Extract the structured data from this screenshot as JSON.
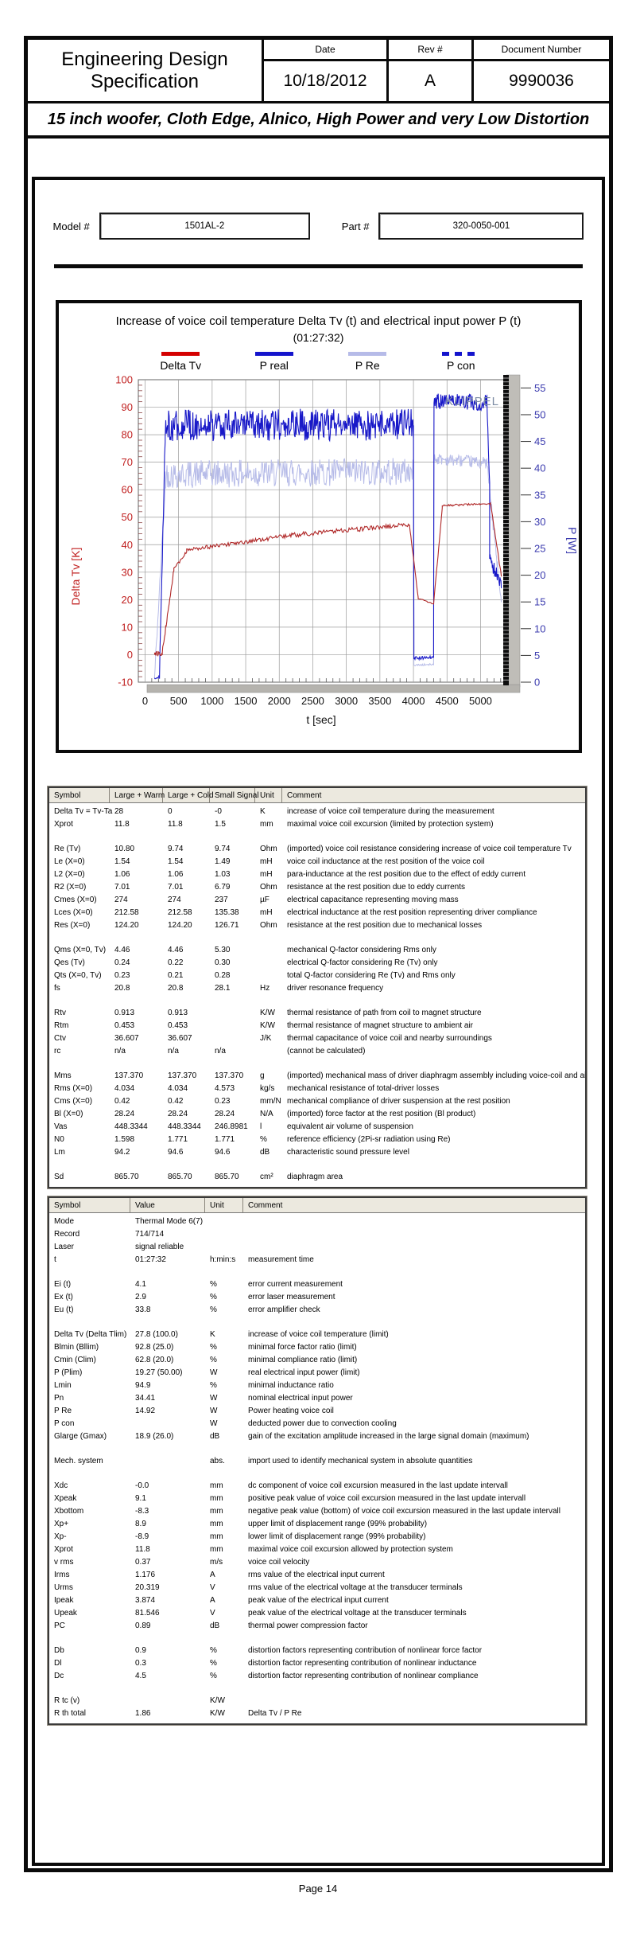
{
  "page": {
    "header": {
      "org_line1": "Engineering Design",
      "org_line2": "Specification",
      "fields": [
        {
          "label": "Date",
          "value": "10/18/2012"
        },
        {
          "label": "Rev #",
          "value": "A"
        },
        {
          "label": "Document Number",
          "value": "9990036"
        }
      ]
    },
    "doc_title": "15 inch woofer, Cloth Edge, Alnico, High Power and very Low Distortion",
    "model": {
      "label": "Model #",
      "value": "1501AL-2"
    },
    "part": {
      "label": "Part #",
      "value": "320-0050-001"
    },
    "footer": "Page 14"
  },
  "chart_data": {
    "type": "line",
    "title": "Increase of voice coil temperature Delta Tv (t) and electrical input power P (t)",
    "subtitle": "(01:27:32)",
    "watermark": "KLIPPEL",
    "xlabel": "t [sec]",
    "xlim": [
      -100,
      5350
    ],
    "x_ticks": [
      0,
      500,
      1000,
      1500,
      2000,
      2500,
      3000,
      3500,
      4000,
      4500,
      5000
    ],
    "left_axis": {
      "label": "Delta Tv [K]",
      "color": "#c02020",
      "lim": [
        -10,
        100
      ],
      "ticks": [
        100,
        90,
        80,
        70,
        60,
        50,
        40,
        30,
        20,
        10,
        0,
        -10
      ]
    },
    "right_axis": {
      "label": "P [W]",
      "color": "#3a3aae",
      "ticks": [
        55,
        50,
        45,
        40,
        35,
        30,
        25,
        20,
        15,
        10,
        5,
        0
      ],
      "scale_to_left": 1.9455,
      "offset": -10
    },
    "legend": [
      {
        "name": "Delta Tv",
        "color": "#d40000",
        "style": "solid"
      },
      {
        "name": "P real",
        "color": "#1414cc",
        "style": "solid"
      },
      {
        "name": "P Re",
        "color": "#b6bbe8",
        "style": "solid"
      },
      {
        "name": "P con",
        "color": "#1414cc",
        "style": "dashed"
      }
    ],
    "series": [
      {
        "name": "P Re",
        "axis": "right",
        "color": "#b6bbe8",
        "width": 1,
        "segments": [
          [
            140,
            300,
            0.5,
            36,
            1.2,
            16
          ],
          [
            300,
            4000,
            38.8,
            39.4,
            2.6,
            400
          ],
          [
            4000,
            4006,
            39,
            3.3,
            0,
            2
          ],
          [
            4006,
            4300,
            3.2,
            3.3,
            0.18,
            30
          ],
          [
            4300,
            4306,
            3.3,
            41.8,
            0,
            2
          ],
          [
            4306,
            5095,
            41.8,
            41,
            1.1,
            90
          ],
          [
            5095,
            5310,
            41,
            14.3,
            1.2,
            30
          ]
        ]
      },
      {
        "name": "P real",
        "axis": "right",
        "color": "#1818c8",
        "width": 1.1,
        "segments": [
          [
            140,
            215,
            0.6,
            1,
            0.25,
            8
          ],
          [
            215,
            300,
            1,
            45.5,
            1.3,
            10
          ],
          [
            300,
            4000,
            48,
            48.2,
            3.0,
            430
          ],
          [
            4000,
            4006,
            48,
            9,
            0,
            2
          ],
          [
            4006,
            4300,
            4.5,
            4.6,
            0.3,
            34
          ],
          [
            4300,
            4306,
            4.6,
            51,
            0,
            2
          ],
          [
            4306,
            5095,
            52.6,
            52.2,
            1.5,
            100
          ],
          [
            5095,
            5135,
            52.2,
            37,
            0.5,
            6
          ],
          [
            5135,
            5310,
            23,
            18.3,
            1.3,
            26
          ]
        ]
      },
      {
        "name": "Delta Tv",
        "axis": "left",
        "color": "#b02828",
        "width": 1.1,
        "segments": [
          [
            140,
            255,
            0,
            0.3,
            1.1,
            16
          ],
          [
            255,
            430,
            0.5,
            31,
            0.9,
            20
          ],
          [
            430,
            620,
            31,
            37.5,
            0.6,
            16
          ],
          [
            620,
            2200,
            38,
            43.5,
            0.75,
            120
          ],
          [
            2200,
            3940,
            43.5,
            47.3,
            0.85,
            120
          ],
          [
            3940,
            4070,
            47.3,
            21,
            0.25,
            12
          ],
          [
            4070,
            4300,
            20.5,
            18.4,
            0.2,
            18
          ],
          [
            4300,
            4430,
            18.4,
            53.2,
            0.3,
            12
          ],
          [
            4430,
            5150,
            54.2,
            55,
            0.35,
            55
          ],
          [
            5150,
            5310,
            55,
            28.5,
            0.6,
            16
          ]
        ]
      }
    ]
  },
  "table1": {
    "headers": [
      "Symbol",
      "Large + Warm",
      "Large + Cold",
      "Small Signal",
      "Unit",
      "Comment"
    ],
    "groups": [
      [
        [
          "Delta Tv = Tv-Ta",
          "28",
          "0",
          "-0",
          "K",
          "increase of voice coil temperature during the measurement"
        ],
        [
          "Xprot",
          "11.8",
          "11.8",
          "1.5",
          "mm",
          "maximal voice coil excursion (limited by protection system)"
        ]
      ],
      [
        [
          "Re (Tv)",
          "10.80",
          "9.74",
          "9.74",
          "Ohm",
          "(imported) voice coil resistance considering increase of voice coil temperature Tv"
        ],
        [
          "Le (X=0)",
          "1.54",
          "1.54",
          "1.49",
          "mH",
          "voice coil inductance at the rest position of the voice coil"
        ],
        [
          "L2 (X=0)",
          "1.06",
          "1.06",
          "1.03",
          "mH",
          "para-inductance at the rest position due to the effect of eddy current"
        ],
        [
          "R2 (X=0)",
          "7.01",
          "7.01",
          "6.79",
          "Ohm",
          "resistance at the rest position due to eddy currents"
        ],
        [
          "Cmes (X=0)",
          "274",
          "274",
          "237",
          "µF",
          "electrical capacitance representing moving mass"
        ],
        [
          "Lces (X=0)",
          "212.58",
          "212.58",
          "135.38",
          "mH",
          "electrical inductance at the rest position representing driver compliance"
        ],
        [
          "Res (X=0)",
          "124.20",
          "124.20",
          "126.71",
          "Ohm",
          "resistance at the rest position due to mechanical losses"
        ]
      ],
      [
        [
          "Qms (X=0, Tv)",
          "4.46",
          "4.46",
          "5.30",
          "",
          "mechanical Q-factor considering Rms only"
        ],
        [
          "Qes (Tv)",
          "0.24",
          "0.22",
          "0.30",
          "",
          "electrical Q-factor considering Re (Tv) only"
        ],
        [
          "Qts (X=0, Tv)",
          "0.23",
          "0.21",
          "0.28",
          "",
          "total Q-factor considering Re (Tv) and Rms only"
        ],
        [
          "fs",
          "20.8",
          "20.8",
          "28.1",
          "Hz",
          "driver resonance frequency"
        ]
      ],
      [
        [
          "Rtv",
          "0.913",
          "0.913",
          "",
          "K/W",
          "thermal resistance of path from coil to magnet structure"
        ],
        [
          "Rtm",
          "0.453",
          "0.453",
          "",
          "K/W",
          "thermal resistance of magnet structure to ambient air"
        ],
        [
          "Ctv",
          "36.607",
          "36.607",
          "",
          "J/K",
          "thermal capacitance of voice coil and nearby surroundings"
        ],
        [
          "rc",
          "n/a",
          "n/a",
          "n/a",
          "",
          "(cannot be calculated)"
        ]
      ],
      [
        [
          "Mms",
          "137.370",
          "137.370",
          "137.370",
          "g",
          "(imported) mechanical mass of driver diaphragm assembly including voice-coil and air load"
        ],
        [
          "Rms (X=0)",
          "4.034",
          "4.034",
          "4.573",
          "kg/s",
          "mechanical resistance of  total-driver losses"
        ],
        [
          "Cms (X=0)",
          "0.42",
          "0.42",
          "0.23",
          "mm/N",
          "mechanical compliance of driver suspension at the rest position"
        ],
        [
          "Bl (X=0)",
          "28.24",
          "28.24",
          "28.24",
          "N/A",
          "(imported) force factor at the rest position (Bl product)"
        ],
        [
          "Vas",
          "448.3344",
          "448.3344",
          "246.8981",
          "l",
          "equivalent air volume of suspension"
        ],
        [
          "N0",
          "1.598",
          "1.771",
          "1.771",
          "%",
          "reference efficiency (2Pi-sr radiation using Re)"
        ],
        [
          "Lm",
          "94.2",
          "94.6",
          "94.6",
          "dB",
          "characteristic sound pressure level"
        ]
      ],
      [
        [
          "Sd",
          "865.70",
          "865.70",
          "865.70",
          "cm²",
          "diaphragm area"
        ]
      ]
    ]
  },
  "table2": {
    "headers": [
      "Symbol",
      "Value",
      "Unit",
      "Comment"
    ],
    "groups": [
      [
        [
          "Mode",
          "Thermal Mode 6(7)",
          "",
          ""
        ],
        [
          "Record",
          "714/714",
          "",
          ""
        ],
        [
          "Laser",
          "signal reliable",
          "",
          ""
        ],
        [
          "t",
          "01:27:32",
          "h:min:s",
          "measurement time"
        ]
      ],
      [
        [
          "Ei (t)",
          "4.1",
          "%",
          "error current measurement"
        ],
        [
          "Ex (t)",
          "2.9",
          "%",
          "error laser measurement"
        ],
        [
          "Eu (t)",
          "33.8",
          "%",
          "error amplifier check"
        ]
      ],
      [
        [
          "Delta Tv (Delta Tlim)",
          "27.8 (100.0)",
          "K",
          "increase of voice coil temperature (limit)"
        ],
        [
          "Blmin (Bllim)",
          "92.8 (25.0)",
          "%",
          "minimal force factor ratio (limit)"
        ],
        [
          "Cmin (Clim)",
          "62.8 (20.0)",
          "%",
          "minimal compliance ratio (limit)"
        ],
        [
          "P (Plim)",
          "19.27 (50.00)",
          "W",
          "real electrical input power (limit)"
        ],
        [
          "Lmin",
          "94.9",
          "%",
          "minimal inductance ratio"
        ],
        [
          "Pn",
          "34.41",
          "W",
          "nominal electrical input power"
        ],
        [
          "P Re",
          "14.92",
          "W",
          "Power heating voice coil"
        ],
        [
          "P con",
          "",
          "W",
          "deducted power due to convection cooling"
        ],
        [
          "Glarge (Gmax)",
          "18.9 (26.0)",
          "dB",
          "gain of the excitation amplitude increased in the large signal domain (maximum)"
        ]
      ],
      [
        [
          "Mech. system",
          "",
          "abs.",
          "import used to identify mechanical system in absolute quantities"
        ]
      ],
      [
        [
          "Xdc",
          "-0.0",
          "mm",
          "dc component of voice coil excursion measured in the last update intervall"
        ],
        [
          "Xpeak",
          "9.1",
          "mm",
          "positive peak value of voice coil excursion measured in the last update intervall"
        ],
        [
          "Xbottom",
          "-8.3",
          "mm",
          "negative peak value (bottom) of voice coil excursion measured in the last update intervall"
        ],
        [
          "Xp+",
          "8.9",
          "mm",
          "upper limit of displacement range (99% probability)"
        ],
        [
          "Xp-",
          "-8.9",
          "mm",
          "lower limit of displacement range (99% probability)"
        ],
        [
          "Xprot",
          "11.8",
          "mm",
          "maximal voice coil excursion allowed by protection system"
        ],
        [
          "v rms",
          "0.37",
          "m/s",
          "voice coil velocity"
        ],
        [
          "Irms",
          "1.176",
          "A",
          "rms value of the electrical input current"
        ],
        [
          "Urms",
          "20.319",
          "V",
          "rms value of the electrical voltage at the transducer terminals"
        ],
        [
          "Ipeak",
          "3.874",
          "A",
          "peak value of the electrical input current"
        ],
        [
          "Upeak",
          "81.546",
          "V",
          "peak value of the electrical voltage at the transducer terminals"
        ],
        [
          "PC",
          "0.89",
          "dB",
          "thermal power compression factor"
        ]
      ],
      [
        [
          "Db",
          "0.9",
          "%",
          "distortion factors representing contribution of nonlinear force factor"
        ],
        [
          "Dl",
          "0.3",
          "%",
          "distortion factor representing contribution of nonlinear inductance"
        ],
        [
          "Dc",
          "4.5",
          "%",
          "distortion factor representing contribution of nonlinear compliance"
        ]
      ],
      [
        [
          "R tc (v)",
          "",
          "K/W",
          ""
        ],
        [
          "R th total",
          "1.86",
          "K/W",
          "Delta Tv / P Re"
        ]
      ]
    ]
  }
}
